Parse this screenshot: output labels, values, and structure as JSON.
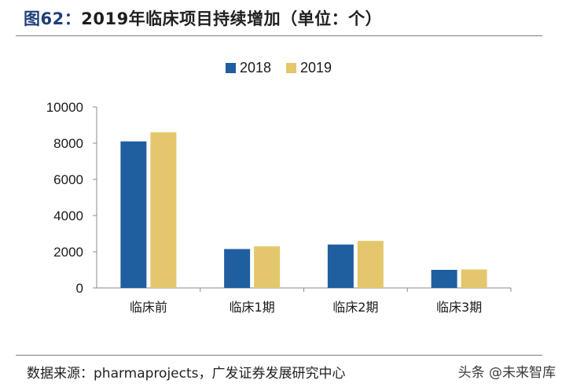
{
  "title": {
    "figure_no": "图62：",
    "text": "2019年临床项目持续增加（单位：个）"
  },
  "source": "数据来源：pharmaprojects，广发证券发展研究中心",
  "watermark": "头条 @未来智库",
  "chart_data": {
    "type": "bar",
    "categories": [
      "临床前",
      "临床1期",
      "临床2期",
      "临床3期"
    ],
    "series": [
      {
        "name": "2018",
        "color": "#1f5f9f",
        "values": [
          8100,
          2150,
          2400,
          1000
        ]
      },
      {
        "name": "2019",
        "color": "#e4c76c",
        "values": [
          8600,
          2300,
          2600,
          1020
        ]
      }
    ],
    "yticks": [
      0,
      2000,
      4000,
      6000,
      8000,
      10000
    ],
    "ylim": [
      0,
      10000
    ],
    "legend_position": "top",
    "grid": false
  }
}
